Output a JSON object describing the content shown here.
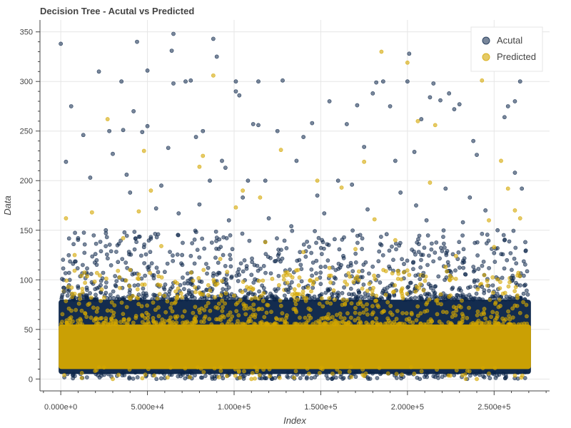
{
  "chart_data": {
    "type": "scatter",
    "title": "Decision Tree - Acutal vs Predicted",
    "xlabel": "Index",
    "ylabel": "Data",
    "xlim": [
      -12000,
      282000
    ],
    "ylim": [
      -12,
      362
    ],
    "x_ticks": [
      {
        "value": 0,
        "label": "0.000e+0"
      },
      {
        "value": 50000,
        "label": "5.000e+4"
      },
      {
        "value": 100000,
        "label": "1.000e+5"
      },
      {
        "value": 150000,
        "label": "1.500e+5"
      },
      {
        "value": 200000,
        "label": "2.000e+5"
      },
      {
        "value": 250000,
        "label": "2.500e+5"
      }
    ],
    "y_ticks": [
      {
        "value": 0,
        "label": "0"
      },
      {
        "value": 50,
        "label": "50"
      },
      {
        "value": 100,
        "label": "100"
      },
      {
        "value": 150,
        "label": "150"
      },
      {
        "value": 200,
        "label": "200"
      },
      {
        "value": 250,
        "label": "250"
      },
      {
        "value": 300,
        "label": "300"
      },
      {
        "value": 350,
        "label": "350"
      }
    ],
    "grid": true,
    "legend_position": "top-right",
    "series": [
      {
        "name": "Acutal",
        "color": "#0b2549",
        "opacity": 0.55,
        "dense_band": [
          5,
          80
        ],
        "points": [
          [
            0,
            338
          ],
          [
            3000,
            219
          ],
          [
            6000,
            275
          ],
          [
            13000,
            246
          ],
          [
            17000,
            203
          ],
          [
            22000,
            310
          ],
          [
            28000,
            250
          ],
          [
            30000,
            227
          ],
          [
            35000,
            300
          ],
          [
            36000,
            251
          ],
          [
            38000,
            206
          ],
          [
            42000,
            270
          ],
          [
            44000,
            340
          ],
          [
            47000,
            249
          ],
          [
            50000,
            255
          ],
          [
            50000,
            311
          ],
          [
            62000,
            233
          ],
          [
            64000,
            331
          ],
          [
            65000,
            298
          ],
          [
            65000,
            348
          ],
          [
            72000,
            300
          ],
          [
            75000,
            301
          ],
          [
            78000,
            244
          ],
          [
            82000,
            250
          ],
          [
            86000,
            200
          ],
          [
            88000,
            343
          ],
          [
            90000,
            325
          ],
          [
            93000,
            220
          ],
          [
            95000,
            213
          ],
          [
            101000,
            300
          ],
          [
            101000,
            290
          ],
          [
            103000,
            286
          ],
          [
            108000,
            200
          ],
          [
            111000,
            257
          ],
          [
            114000,
            256
          ],
          [
            114000,
            300
          ],
          [
            118000,
            200
          ],
          [
            125000,
            250
          ],
          [
            128000,
            301
          ],
          [
            136000,
            220
          ],
          [
            140000,
            244
          ],
          [
            145000,
            258
          ],
          [
            155000,
            280
          ],
          [
            160000,
            200
          ],
          [
            165000,
            257
          ],
          [
            171000,
            276
          ],
          [
            175000,
            234
          ],
          [
            180000,
            288
          ],
          [
            182000,
            299
          ],
          [
            186000,
            300
          ],
          [
            190000,
            275
          ],
          [
            193000,
            220
          ],
          [
            200000,
            300
          ],
          [
            201000,
            328
          ],
          [
            204000,
            229
          ],
          [
            208000,
            262
          ],
          [
            213000,
            284
          ],
          [
            215000,
            298
          ],
          [
            219000,
            281
          ],
          [
            224000,
            288
          ],
          [
            227000,
            272
          ],
          [
            230000,
            277
          ],
          [
            238000,
            240
          ],
          [
            240000,
            226
          ],
          [
            258000,
            275
          ],
          [
            262000,
            280
          ],
          [
            265000,
            300
          ],
          [
            256000,
            264
          ],
          [
            262000,
            208
          ],
          [
            266000,
            192
          ],
          [
            268000,
            138
          ],
          [
            10000,
            142
          ],
          [
            26000,
            150
          ],
          [
            40000,
            188
          ],
          [
            55000,
            172
          ],
          [
            58000,
            195
          ],
          [
            68000,
            167
          ],
          [
            80000,
            176
          ],
          [
            97000,
            160
          ],
          [
            105000,
            183
          ],
          [
            120000,
            162
          ],
          [
            133000,
            154
          ],
          [
            148000,
            185
          ],
          [
            152000,
            167
          ],
          [
            158000,
            141
          ],
          [
            168000,
            196
          ],
          [
            177000,
            171
          ],
          [
            188000,
            146
          ],
          [
            196000,
            188
          ],
          [
            205000,
            175
          ],
          [
            211000,
            160
          ],
          [
            222000,
            192
          ],
          [
            232000,
            158
          ],
          [
            236000,
            183
          ],
          [
            245000,
            170
          ],
          [
            252000,
            150
          ],
          [
            256000,
            140
          ],
          [
            20000,
            126
          ],
          [
            33000,
            118
          ],
          [
            48000,
            133
          ],
          [
            60000,
            108
          ],
          [
            70000,
            125
          ],
          [
            85000,
            112
          ],
          [
            99000,
            131
          ],
          [
            110000,
            105
          ],
          [
            124000,
            119
          ],
          [
            138000,
            128
          ],
          [
            150000,
            113
          ],
          [
            163000,
            124
          ],
          [
            174000,
            109
          ],
          [
            185000,
            135
          ],
          [
            198000,
            116
          ],
          [
            209000,
            104
          ],
          [
            220000,
            129
          ],
          [
            229000,
            121
          ],
          [
            241000,
            111
          ],
          [
            250000,
            127
          ],
          [
            260000,
            102
          ],
          [
            268000,
            95
          ],
          [
            2000,
            88
          ],
          [
            15000,
            92
          ],
          [
            45000,
            85
          ],
          [
            75000,
            96
          ],
          [
            130000,
            90
          ],
          [
            160000,
            87
          ],
          [
            190000,
            94
          ],
          [
            215000,
            89
          ],
          [
            243000,
            93
          ],
          [
            267000,
            86
          ]
        ]
      },
      {
        "name": "Predicted",
        "color": "#d4a600",
        "opacity": 0.6,
        "dense_band": [
          10,
          55
        ],
        "points": [
          [
            3000,
            162
          ],
          [
            18000,
            168
          ],
          [
            27000,
            262
          ],
          [
            45000,
            169
          ],
          [
            48000,
            230
          ],
          [
            52000,
            190
          ],
          [
            80000,
            214
          ],
          [
            82000,
            225
          ],
          [
            88000,
            306
          ],
          [
            101000,
            173
          ],
          [
            105000,
            190
          ],
          [
            115000,
            183
          ],
          [
            127000,
            231
          ],
          [
            148000,
            200
          ],
          [
            162000,
            193
          ],
          [
            175000,
            219
          ],
          [
            181000,
            161
          ],
          [
            185000,
            330
          ],
          [
            200000,
            319
          ],
          [
            206000,
            260
          ],
          [
            213000,
            198
          ],
          [
            216000,
            256
          ],
          [
            243000,
            301
          ],
          [
            247000,
            160
          ],
          [
            254000,
            220
          ],
          [
            258000,
            192
          ],
          [
            262000,
            170
          ],
          [
            265000,
            162
          ],
          [
            8000,
            125
          ],
          [
            36000,
            142
          ],
          [
            58000,
            134
          ],
          [
            92000,
            121
          ],
          [
            118000,
            138
          ],
          [
            140000,
            128
          ],
          [
            170000,
            131
          ],
          [
            193000,
            140
          ],
          [
            228000,
            124
          ],
          [
            250000,
            133
          ],
          [
            12000,
            104
          ],
          [
            40000,
            110
          ],
          [
            66000,
            98
          ],
          [
            96000,
            108
          ],
          [
            122000,
            101
          ],
          [
            155000,
            112
          ],
          [
            178000,
            96
          ],
          [
            201000,
            105
          ],
          [
            222000,
            113
          ],
          [
            246000,
            99
          ],
          [
            264000,
            107
          ],
          [
            25000,
            82
          ],
          [
            64000,
            76
          ],
          [
            100000,
            84
          ],
          [
            143000,
            71
          ],
          [
            182000,
            79
          ],
          [
            224000,
            83
          ],
          [
            262000,
            74
          ],
          [
            30000,
            0
          ],
          [
            110000,
            0
          ],
          [
            175000,
            3
          ],
          [
            240000,
            0
          ]
        ]
      }
    ]
  }
}
